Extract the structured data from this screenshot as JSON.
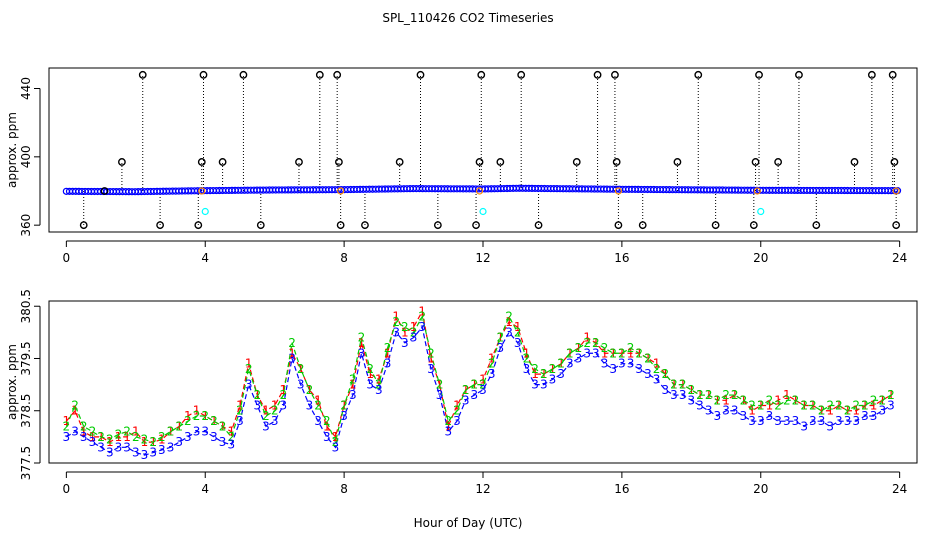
{
  "title": "SPL_110426  CO2 Timeseries",
  "xlabel": "Hour of Day (UTC)",
  "colors": {
    "background": "#ffffff",
    "axis": "#000000",
    "series1": "#ff0000",
    "series2": "#00cc00",
    "series3": "#0000ff",
    "top_points": "#0000ff",
    "top_outliers": "#000000",
    "top_cyan": "#00ffff",
    "top_orange": "#ff8c00"
  },
  "chart_data": [
    {
      "type": "scatter",
      "title": "",
      "xlabel": "",
      "ylabel": "approx. ppm",
      "xlim": [
        -0.5,
        24.5
      ],
      "ylim": [
        356,
        452
      ],
      "xticks": [
        0,
        4,
        8,
        12,
        16,
        20,
        24
      ],
      "yticks": [
        360,
        400,
        440
      ],
      "baseline_note": "dense blue point series near 379–381 ppm across the day, with vertical dotted spikes to outlier circles",
      "baseline": [
        {
          "x": 0,
          "y": 379.8
        },
        {
          "x": 2,
          "y": 379.6
        },
        {
          "x": 4,
          "y": 380.2
        },
        {
          "x": 6,
          "y": 380.6
        },
        {
          "x": 8,
          "y": 380.8
        },
        {
          "x": 10,
          "y": 381.4
        },
        {
          "x": 12,
          "y": 381.2
        },
        {
          "x": 13,
          "y": 381.6
        },
        {
          "x": 16,
          "y": 381.0
        },
        {
          "x": 20,
          "y": 380.4
        },
        {
          "x": 24,
          "y": 380.2
        }
      ],
      "outliers": [
        {
          "x": 0.5,
          "y": 360
        },
        {
          "x": 1.1,
          "y": 380
        },
        {
          "x": 1.6,
          "y": 397
        },
        {
          "x": 2.2,
          "y": 448
        },
        {
          "x": 2.7,
          "y": 360
        },
        {
          "x": 3.8,
          "y": 360
        },
        {
          "x": 3.9,
          "y": 397
        },
        {
          "x": 3.95,
          "y": 448
        },
        {
          "x": 4.5,
          "y": 397
        },
        {
          "x": 5.1,
          "y": 448
        },
        {
          "x": 5.6,
          "y": 360
        },
        {
          "x": 6.7,
          "y": 397
        },
        {
          "x": 7.3,
          "y": 448
        },
        {
          "x": 7.8,
          "y": 448
        },
        {
          "x": 7.85,
          "y": 397
        },
        {
          "x": 7.9,
          "y": 360
        },
        {
          "x": 8.6,
          "y": 360
        },
        {
          "x": 9.6,
          "y": 397
        },
        {
          "x": 10.2,
          "y": 448
        },
        {
          "x": 10.7,
          "y": 360
        },
        {
          "x": 11.8,
          "y": 360
        },
        {
          "x": 11.9,
          "y": 397
        },
        {
          "x": 11.95,
          "y": 448
        },
        {
          "x": 12.5,
          "y": 397
        },
        {
          "x": 13.1,
          "y": 448
        },
        {
          "x": 13.6,
          "y": 360
        },
        {
          "x": 14.7,
          "y": 397
        },
        {
          "x": 15.3,
          "y": 448
        },
        {
          "x": 15.8,
          "y": 448
        },
        {
          "x": 15.85,
          "y": 397
        },
        {
          "x": 15.9,
          "y": 360
        },
        {
          "x": 16.6,
          "y": 360
        },
        {
          "x": 17.6,
          "y": 397
        },
        {
          "x": 18.2,
          "y": 448
        },
        {
          "x": 18.7,
          "y": 360
        },
        {
          "x": 19.8,
          "y": 360
        },
        {
          "x": 19.85,
          "y": 397
        },
        {
          "x": 19.95,
          "y": 448
        },
        {
          "x": 20.5,
          "y": 397
        },
        {
          "x": 21.1,
          "y": 448
        },
        {
          "x": 21.6,
          "y": 360
        },
        {
          "x": 22.7,
          "y": 397
        },
        {
          "x": 23.2,
          "y": 448
        },
        {
          "x": 23.8,
          "y": 448
        },
        {
          "x": 23.85,
          "y": 397
        },
        {
          "x": 23.9,
          "y": 360
        }
      ],
      "cyan_points": [
        {
          "x": 4.0,
          "y": 368
        },
        {
          "x": 12.0,
          "y": 368
        },
        {
          "x": 20.0,
          "y": 368
        }
      ],
      "orange_points": [
        {
          "x": 3.9,
          "y": 380
        },
        {
          "x": 7.9,
          "y": 380
        },
        {
          "x": 11.9,
          "y": 380
        },
        {
          "x": 15.9,
          "y": 380
        },
        {
          "x": 19.9,
          "y": 380
        },
        {
          "x": 23.9,
          "y": 380
        }
      ]
    },
    {
      "type": "line",
      "title": "",
      "xlabel": "Hour of Day (UTC)",
      "ylabel": "approx. ppm",
      "xlim": [
        -0.5,
        24.5
      ],
      "ylim": [
        377.5,
        380.6
      ],
      "xticks": [
        0,
        4,
        8,
        12,
        16,
        20,
        24
      ],
      "yticks": [
        377.5,
        378.5,
        379.5,
        380.5
      ],
      "ytick_labels": [
        "377.5",
        "378.5",
        "379.5",
        "380.5"
      ],
      "series_note": "three overlapping series plotted with numeric characters 1 (red), 2 (green), 3 (blue)",
      "x": [
        0.0,
        0.25,
        0.5,
        0.75,
        1.0,
        1.25,
        1.5,
        1.75,
        2.0,
        2.25,
        2.5,
        2.75,
        3.0,
        3.25,
        3.5,
        3.75,
        4.0,
        4.25,
        4.5,
        4.75,
        5.0,
        5.25,
        5.5,
        5.75,
        6.0,
        6.25,
        6.5,
        6.75,
        7.0,
        7.25,
        7.5,
        7.75,
        8.0,
        8.25,
        8.5,
        8.75,
        9.0,
        9.25,
        9.5,
        9.75,
        10.0,
        10.25,
        10.5,
        10.75,
        11.0,
        11.25,
        11.5,
        11.75,
        12.0,
        12.25,
        12.5,
        12.75,
        13.0,
        13.25,
        13.5,
        13.75,
        14.0,
        14.25,
        14.5,
        14.75,
        15.0,
        15.25,
        15.5,
        15.75,
        16.0,
        16.25,
        16.5,
        16.75,
        17.0,
        17.25,
        17.5,
        17.75,
        18.0,
        18.25,
        18.5,
        18.75,
        19.0,
        19.25,
        19.5,
        19.75,
        20.0,
        20.25,
        20.5,
        20.75,
        21.0,
        21.25,
        21.5,
        21.75,
        22.0,
        22.25,
        22.5,
        22.75,
        23.0,
        23.25,
        23.5,
        23.75
      ],
      "series": [
        {
          "name": "1",
          "color": "#ff0000",
          "values": [
            378.3,
            378.5,
            378.1,
            378.0,
            378.0,
            377.9,
            378.0,
            378.0,
            378.1,
            377.9,
            377.9,
            377.95,
            378.1,
            378.2,
            378.4,
            378.5,
            378.4,
            378.3,
            378.2,
            378.1,
            378.6,
            379.4,
            378.8,
            378.5,
            378.6,
            378.9,
            379.6,
            379.3,
            378.9,
            378.7,
            378.2,
            378.0,
            378.6,
            379.0,
            379.8,
            379.2,
            379.1,
            379.6,
            380.3,
            380.0,
            380.1,
            380.4,
            379.5,
            379.0,
            378.2,
            378.6,
            378.9,
            379.0,
            379.1,
            379.5,
            379.9,
            380.2,
            380.1,
            379.6,
            379.2,
            379.2,
            379.3,
            379.4,
            379.6,
            379.7,
            379.9,
            379.8,
            379.6,
            379.6,
            379.6,
            379.6,
            379.6,
            379.5,
            379.4,
            379.2,
            379.0,
            379.0,
            378.9,
            378.8,
            378.8,
            378.7,
            378.7,
            378.8,
            378.7,
            378.5,
            378.6,
            378.6,
            378.7,
            378.8,
            378.7,
            378.6,
            378.6,
            378.5,
            378.5,
            378.6,
            378.5,
            378.5,
            378.6,
            378.6,
            378.7,
            378.8
          ]
        },
        {
          "name": "2",
          "color": "#00cc00",
          "values": [
            378.2,
            378.6,
            378.2,
            378.1,
            378.0,
            377.95,
            378.05,
            378.1,
            378.0,
            377.95,
            377.9,
            378.0,
            378.1,
            378.2,
            378.3,
            378.4,
            378.4,
            378.3,
            378.2,
            378.0,
            378.5,
            379.3,
            378.8,
            378.4,
            378.5,
            378.8,
            379.8,
            379.3,
            378.9,
            378.6,
            378.3,
            377.9,
            378.6,
            379.1,
            379.9,
            379.3,
            379.0,
            379.7,
            380.2,
            380.1,
            380.0,
            380.3,
            379.6,
            379.0,
            378.3,
            378.5,
            378.9,
            379.0,
            379.0,
            379.4,
            379.9,
            380.3,
            380.0,
            379.5,
            379.3,
            379.2,
            379.3,
            379.4,
            379.6,
            379.7,
            379.8,
            379.8,
            379.7,
            379.6,
            379.6,
            379.7,
            379.6,
            379.5,
            379.3,
            379.2,
            379.0,
            379.0,
            378.9,
            378.8,
            378.8,
            378.7,
            378.8,
            378.8,
            378.7,
            378.6,
            378.6,
            378.7,
            378.6,
            378.7,
            378.7,
            378.6,
            378.6,
            378.5,
            378.6,
            378.6,
            378.5,
            378.6,
            378.6,
            378.7,
            378.7,
            378.8
          ]
        },
        {
          "name": "3",
          "color": "#0000ff",
          "values": [
            378.0,
            378.1,
            378.0,
            377.9,
            377.8,
            377.7,
            377.8,
            377.8,
            377.7,
            377.65,
            377.7,
            377.75,
            377.8,
            377.9,
            378.0,
            378.1,
            378.1,
            378.0,
            377.9,
            377.85,
            378.3,
            379.0,
            378.6,
            378.2,
            378.3,
            378.6,
            379.5,
            379.0,
            378.6,
            378.3,
            378.0,
            377.8,
            378.4,
            378.8,
            379.6,
            379.0,
            378.9,
            379.4,
            380.0,
            379.8,
            379.9,
            380.1,
            379.3,
            378.8,
            378.1,
            378.3,
            378.7,
            378.8,
            378.9,
            379.2,
            379.7,
            380.0,
            379.8,
            379.3,
            379.0,
            379.0,
            379.1,
            379.2,
            379.4,
            379.5,
            379.6,
            379.6,
            379.4,
            379.3,
            379.4,
            379.4,
            379.3,
            379.2,
            379.1,
            378.9,
            378.8,
            378.8,
            378.7,
            378.6,
            378.5,
            378.4,
            378.5,
            378.5,
            378.4,
            378.3,
            378.3,
            378.4,
            378.3,
            378.3,
            378.3,
            378.2,
            378.3,
            378.3,
            378.2,
            378.3,
            378.3,
            378.3,
            378.4,
            378.4,
            378.5,
            378.6
          ]
        }
      ]
    }
  ]
}
